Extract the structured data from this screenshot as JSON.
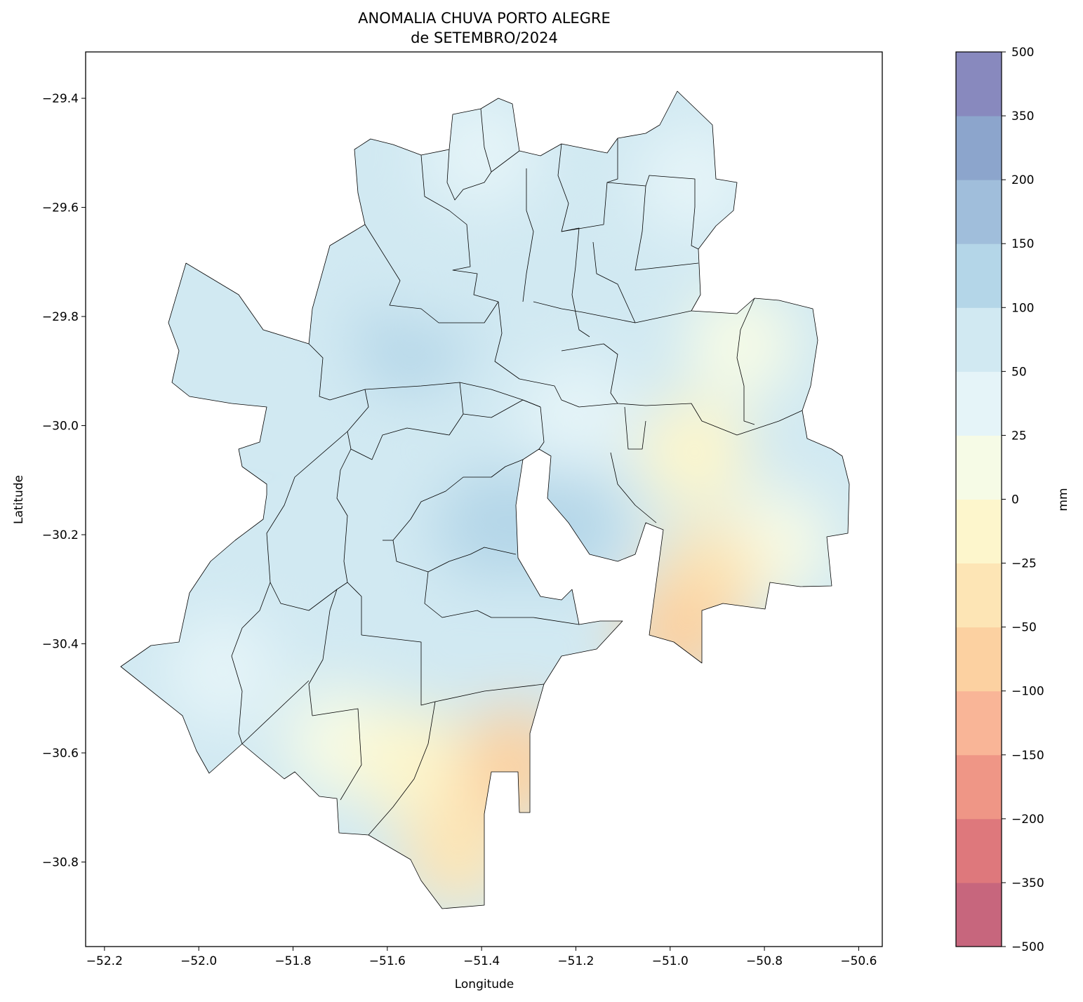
{
  "title": {
    "line1": "ANOMALIA CHUVA PORTO ALEGRE",
    "line2": "de SETEMBRO/2024"
  },
  "axes": {
    "xlabel": "Longitude",
    "ylabel": "Latitude",
    "xlim": [
      -52.24,
      -50.55
    ],
    "ylim": [
      -30.955,
      -29.315
    ],
    "xticks": [
      -52.2,
      -52.0,
      -51.8,
      -51.6,
      -51.4,
      -51.2,
      -51.0,
      -50.8,
      -50.6
    ],
    "yticks": [
      -29.4,
      -29.6,
      -29.8,
      -30.0,
      -30.2,
      -30.4,
      -30.6,
      -30.8
    ],
    "grid": false
  },
  "colorbar": {
    "label": "mm",
    "levels": [
      -500,
      -350,
      -200,
      -150,
      -100,
      -50,
      -25,
      0,
      25,
      50,
      100,
      150,
      200,
      350,
      500
    ],
    "tick_labels": [
      "−500",
      "−350",
      "−200",
      "−150",
      "−100",
      "−50",
      "−25",
      "0",
      "25",
      "50",
      "100",
      "150",
      "200",
      "350",
      "500"
    ],
    "colors": [
      "#c7667d",
      "#de787c",
      "#ef9686",
      "#f9b597",
      "#fcd1a1",
      "#fde5b5",
      "#fdf6cc",
      "#f6fbe6",
      "#e5f4f8",
      "#d1e9f2",
      "#b4d6e8",
      "#a0bedb",
      "#8ca5cc",
      "#8889be"
    ]
  },
  "chart_data": {
    "type": "heatmap",
    "title": "ANOMALIA CHUVA PORTO ALEGRE\nde SETEMBRO/2024",
    "xlabel": "Longitude",
    "ylabel": "Latitude",
    "units": "mm",
    "xlim": [
      -52.24,
      -50.55
    ],
    "ylim": [
      -30.955,
      -29.315
    ],
    "zones": [
      {
        "lon": -51.55,
        "lat": -29.84,
        "value": 110
      },
      {
        "lon": -51.38,
        "lat": -30.18,
        "value": 110
      },
      {
        "lon": -51.22,
        "lat": -30.18,
        "value": 110
      },
      {
        "lon": -51.52,
        "lat": -29.72,
        "value": 70
      },
      {
        "lon": -51.82,
        "lat": -29.86,
        "value": 70
      },
      {
        "lon": -51.55,
        "lat": -30.05,
        "value": 70
      },
      {
        "lon": -51.15,
        "lat": -29.62,
        "value": 70
      },
      {
        "lon": -51.7,
        "lat": -30.3,
        "value": 70
      },
      {
        "lon": -51.4,
        "lat": -29.5,
        "value": 35
      },
      {
        "lon": -50.95,
        "lat": -29.55,
        "value": 35
      },
      {
        "lon": -51.95,
        "lat": -30.45,
        "value": 35
      },
      {
        "lon": -51.2,
        "lat": -29.98,
        "value": 35
      },
      {
        "lon": -50.7,
        "lat": -30.18,
        "value": 70
      },
      {
        "lon": -50.85,
        "lat": -29.85,
        "value": 10
      },
      {
        "lon": -51.7,
        "lat": -30.58,
        "value": 10
      },
      {
        "lon": -50.78,
        "lat": -30.22,
        "value": 10
      },
      {
        "lon": -50.95,
        "lat": -30.05,
        "value": -15
      },
      {
        "lon": -51.55,
        "lat": -30.62,
        "value": -15
      },
      {
        "lon": -51.45,
        "lat": -30.78,
        "value": -35
      },
      {
        "lon": -50.92,
        "lat": -30.28,
        "value": -35
      },
      {
        "lon": -51.33,
        "lat": -30.62,
        "value": -75
      },
      {
        "lon": -50.98,
        "lat": -30.38,
        "value": -75
      }
    ]
  }
}
